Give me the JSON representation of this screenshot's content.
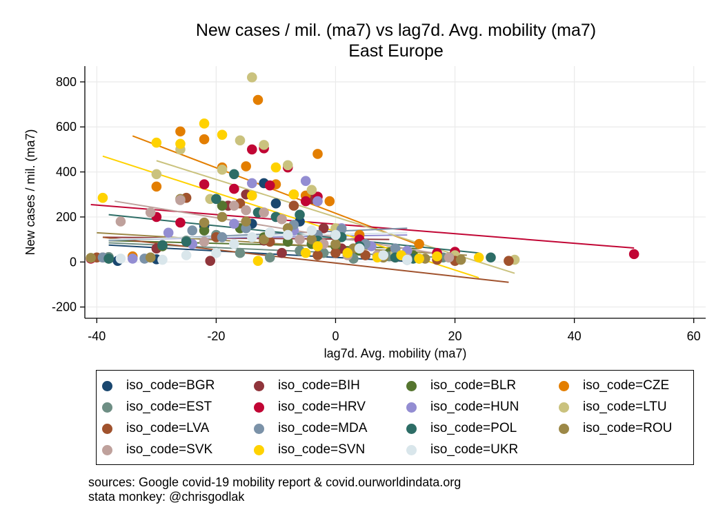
{
  "title": "New cases / mil. (ma7) vs lag7d. Avg. mobility (ma7)",
  "subtitle": "East Europe",
  "notes": [
    "sources: Google covid-19 mobility report & covid.ourworldindata.org",
    "stata monkey: @chrisgodlak"
  ],
  "chart_data": {
    "type": "scatter",
    "title": "New cases / mil. (ma7) vs lag7d. Avg. mobility (ma7)",
    "subtitle": "East Europe",
    "xlabel": "lag7d. Avg. mobility (ma7)",
    "ylabel": "New cases / mil. (ma7)",
    "xlim": [
      -42,
      62
    ],
    "ylim": [
      -250,
      870
    ],
    "xticks": [
      -40,
      -20,
      0,
      20,
      40,
      60
    ],
    "yticks": [
      -200,
      0,
      200,
      400,
      600,
      800
    ],
    "grid": true,
    "legend_position": "bottom",
    "legend_columns": 4,
    "series": [
      {
        "name": "iso_code=BGR",
        "color": "#1a476f",
        "fit": [
          [
            -38,
            75
          ],
          [
            14,
            0
          ]
        ],
        "points": [
          [
            -36.5,
            5
          ],
          [
            -30,
            12
          ],
          [
            -22,
            160
          ],
          [
            -14,
            170
          ],
          [
            -12,
            350
          ],
          [
            -10,
            260
          ],
          [
            -6,
            180
          ],
          [
            0,
            120
          ],
          [
            3,
            60
          ],
          [
            8,
            20
          ],
          [
            12,
            10
          ]
        ]
      },
      {
        "name": "iso_code=BIH",
        "color": "#90353b",
        "fit": [
          [
            -39,
            110
          ],
          [
            9,
            100
          ]
        ],
        "points": [
          [
            -39,
            20
          ],
          [
            -30,
            60
          ],
          [
            -21,
            5
          ],
          [
            -18,
            250
          ],
          [
            -15,
            300
          ],
          [
            -12,
            95
          ],
          [
            -9,
            40
          ],
          [
            -4,
            280
          ],
          [
            -2,
            150
          ],
          [
            1,
            60
          ],
          [
            5,
            30
          ]
        ]
      },
      {
        "name": "iso_code=BLR",
        "color": "#55752f",
        "fit": [
          [
            -38,
            95
          ],
          [
            14,
            60
          ]
        ],
        "points": [
          [
            -38,
            15
          ],
          [
            -29,
            70
          ],
          [
            -22,
            140
          ],
          [
            -19,
            250
          ],
          [
            -16,
            150
          ],
          [
            -12,
            110
          ],
          [
            -8,
            90
          ],
          [
            -4,
            80
          ],
          [
            0,
            70
          ],
          [
            4,
            50
          ],
          [
            9,
            40
          ],
          [
            13,
            30
          ]
        ]
      },
      {
        "name": "iso_code=CZE",
        "color": "#e37e00",
        "fit": [
          [
            -34,
            560
          ],
          [
            14,
            75
          ]
        ],
        "points": [
          [
            -34,
            25
          ],
          [
            -30,
            335
          ],
          [
            -26,
            580
          ],
          [
            -22,
            545
          ],
          [
            -19,
            420
          ],
          [
            -15,
            425
          ],
          [
            -13,
            720
          ],
          [
            -10,
            345
          ],
          [
            -7,
            300
          ],
          [
            -5,
            295
          ],
          [
            -3,
            480
          ],
          [
            -1,
            270
          ],
          [
            4,
            120
          ],
          [
            14,
            80
          ],
          [
            20,
            30
          ]
        ]
      },
      {
        "name": "iso_code=EST",
        "color": "#6e8e84",
        "fit": [
          [
            -38,
            85
          ],
          [
            18,
            20
          ]
        ],
        "points": [
          [
            -38,
            22
          ],
          [
            -31,
            20
          ],
          [
            -25,
            95
          ],
          [
            -20,
            120
          ],
          [
            -16,
            40
          ],
          [
            -11,
            20
          ],
          [
            -6,
            50
          ],
          [
            -2,
            40
          ],
          [
            3,
            15
          ],
          [
            9,
            25
          ],
          [
            14,
            15
          ],
          [
            18,
            20
          ]
        ]
      },
      {
        "name": "iso_code=HRV",
        "color": "#c10534",
        "fit": [
          [
            -41,
            255
          ],
          [
            50,
            62
          ]
        ],
        "points": [
          [
            -41,
            15
          ],
          [
            -30,
            200
          ],
          [
            -26,
            175
          ],
          [
            -22,
            345
          ],
          [
            -17,
            325
          ],
          [
            -14,
            500
          ],
          [
            -12,
            505
          ],
          [
            -11,
            340
          ],
          [
            -8,
            420
          ],
          [
            -5,
            270
          ],
          [
            -3,
            290
          ],
          [
            4,
            100
          ],
          [
            10,
            55
          ],
          [
            17,
            40
          ],
          [
            20,
            45
          ],
          [
            50,
            35
          ]
        ]
      },
      {
        "name": "iso_code=HUN",
        "color": "#938dd2",
        "fit": [
          [
            -37,
            100
          ],
          [
            12,
            120
          ]
        ],
        "points": [
          [
            -34,
            15
          ],
          [
            -28,
            130
          ],
          [
            -24,
            80
          ],
          [
            -17,
            170
          ],
          [
            -14,
            350
          ],
          [
            -10,
            200
          ],
          [
            -7,
            140
          ],
          [
            -5,
            360
          ],
          [
            -3,
            270
          ],
          [
            1,
            150
          ],
          [
            6,
            70
          ],
          [
            12,
            50
          ]
        ]
      },
      {
        "name": "iso_code=LTU",
        "color": "#cac27e",
        "fit": [
          [
            -30,
            450
          ],
          [
            30,
            -50
          ]
        ],
        "points": [
          [
            -30,
            390
          ],
          [
            -26,
            500
          ],
          [
            -21,
            280
          ],
          [
            -19,
            410
          ],
          [
            -16,
            540
          ],
          [
            -14,
            820
          ],
          [
            -12,
            520
          ],
          [
            -8,
            430
          ],
          [
            -4,
            320
          ],
          [
            0,
            150
          ],
          [
            4,
            60
          ],
          [
            10,
            40
          ],
          [
            20,
            30
          ],
          [
            30,
            10
          ]
        ]
      },
      {
        "name": "iso_code=LVA",
        "color": "#a0522d",
        "fit": [
          [
            -39,
            110
          ],
          [
            29,
            -90
          ]
        ],
        "points": [
          [
            -40,
            20
          ],
          [
            -25,
            285
          ],
          [
            -20,
            110
          ],
          [
            -16,
            260
          ],
          [
            -11,
            90
          ],
          [
            -7,
            250
          ],
          [
            -3,
            30
          ],
          [
            0,
            40
          ],
          [
            5,
            30
          ],
          [
            10,
            20
          ],
          [
            17,
            10
          ],
          [
            20,
            5
          ],
          [
            29,
            5
          ]
        ]
      },
      {
        "name": "iso_code=MDA",
        "color": "#7b92a8",
        "fit": [
          [
            -38,
            95
          ],
          [
            12,
            150
          ]
        ],
        "points": [
          [
            -39,
            20
          ],
          [
            -32,
            15
          ],
          [
            -24,
            140
          ],
          [
            -19,
            110
          ],
          [
            -15,
            150
          ],
          [
            -11,
            130
          ],
          [
            -7,
            165
          ],
          [
            -3,
            120
          ],
          [
            1,
            145
          ],
          [
            5,
            80
          ],
          [
            10,
            60
          ]
        ]
      },
      {
        "name": "iso_code=POL",
        "color": "#2d6d66",
        "fit": [
          [
            -38,
            210
          ],
          [
            24,
            40
          ]
        ],
        "points": [
          [
            -38,
            15
          ],
          [
            -29,
            75
          ],
          [
            -25,
            90
          ],
          [
            -20,
            280
          ],
          [
            -17,
            390
          ],
          [
            -13,
            220
          ],
          [
            -10,
            200
          ],
          [
            -6,
            210
          ],
          [
            -3,
            95
          ],
          [
            1,
            110
          ],
          [
            4,
            70
          ],
          [
            7,
            30
          ],
          [
            10,
            20
          ],
          [
            13,
            15
          ],
          [
            19,
            20
          ],
          [
            26,
            20
          ]
        ]
      },
      {
        "name": "iso_code=ROU",
        "color": "#9c8847",
        "fit": [
          [
            -40,
            130
          ],
          [
            22,
            30
          ]
        ],
        "points": [
          [
            -41,
            18
          ],
          [
            -31,
            20
          ],
          [
            -26,
            280
          ],
          [
            -22,
            175
          ],
          [
            -19,
            200
          ],
          [
            -15,
            180
          ],
          [
            -12,
            100
          ],
          [
            -8,
            150
          ],
          [
            -4,
            100
          ],
          [
            0,
            80
          ],
          [
            3,
            60
          ],
          [
            8,
            20
          ],
          [
            15,
            15
          ],
          [
            21,
            10
          ]
        ]
      },
      {
        "name": "iso_code=SVK",
        "color": "#bfa19c",
        "fit": [
          [
            -37,
            270
          ],
          [
            21,
            20
          ]
        ],
        "points": [
          [
            -36,
            180
          ],
          [
            -31,
            220
          ],
          [
            -26,
            275
          ],
          [
            -22,
            90
          ],
          [
            -17,
            250
          ],
          [
            -15,
            230
          ],
          [
            -12,
            220
          ],
          [
            -9,
            190
          ],
          [
            -6,
            100
          ],
          [
            -2,
            80
          ],
          [
            2,
            30
          ],
          [
            7,
            30
          ],
          [
            12,
            15
          ],
          [
            19,
            20
          ]
        ]
      },
      {
        "name": "iso_code=SVN",
        "color": "#ffd200",
        "fit": [
          [
            -39,
            470
          ],
          [
            24,
            -70
          ]
        ],
        "points": [
          [
            -39,
            285
          ],
          [
            -30,
            530
          ],
          [
            -26,
            525
          ],
          [
            -22,
            615
          ],
          [
            -19,
            565
          ],
          [
            -14,
            295
          ],
          [
            -13,
            5
          ],
          [
            -10,
            420
          ],
          [
            -7,
            300
          ],
          [
            -5,
            40
          ],
          [
            -3,
            70
          ],
          [
            2,
            40
          ],
          [
            7,
            20
          ],
          [
            11,
            30
          ],
          [
            14,
            15
          ],
          [
            17,
            25
          ],
          [
            24,
            20
          ]
        ]
      },
      {
        "name": "iso_code=UKR",
        "color": "#d9e6eb",
        "fit": [
          [
            -38,
            100
          ],
          [
            12,
            130
          ]
        ],
        "points": [
          [
            -36,
            15
          ],
          [
            -29,
            10
          ],
          [
            -25,
            30
          ],
          [
            -20,
            40
          ],
          [
            -17,
            80
          ],
          [
            -14,
            110
          ],
          [
            -11,
            130
          ],
          [
            -8,
            120
          ],
          [
            -4,
            140
          ],
          [
            0,
            120
          ],
          [
            4,
            60
          ],
          [
            8,
            30
          ],
          [
            12,
            10
          ]
        ]
      }
    ]
  }
}
